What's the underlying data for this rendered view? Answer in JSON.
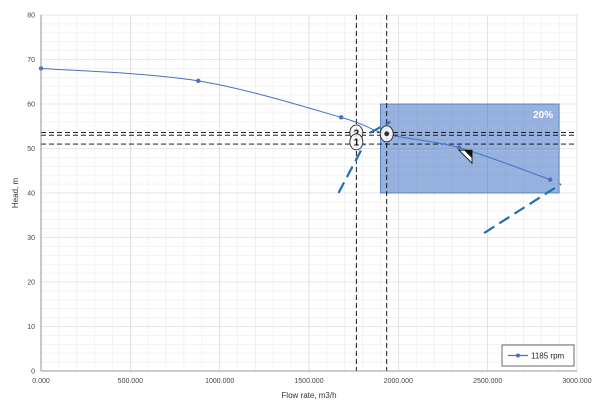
{
  "chart_data": {
    "type": "line",
    "xlabel": "Flow rate, m3/h",
    "ylabel": "Head, m",
    "xlim": [
      0,
      3000
    ],
    "ylim": [
      0,
      80
    ],
    "x_ticks": [
      0,
      500,
      1000,
      1500,
      2000,
      2500,
      3000
    ],
    "x_tick_labels": [
      "0.000",
      "500.000",
      "1000.000",
      "1500.000",
      "2000.000",
      "2500.000",
      "3000.000"
    ],
    "y_ticks": [
      0,
      10,
      20,
      30,
      40,
      50,
      60,
      70,
      80
    ],
    "y_tick_labels": [
      "0",
      "10",
      "20",
      "30",
      "40",
      "50",
      "60",
      "70",
      "80"
    ],
    "grid": true,
    "legend_position": "bottom-right",
    "series": [
      {
        "name": "1185 rpm",
        "color": "#4472c4",
        "x": [
          0,
          880,
          1680,
          1935,
          2340,
          2850
        ],
        "y": [
          68,
          65.2,
          57,
          53.2,
          50.2,
          43
        ]
      }
    ],
    "shaded_region": {
      "label": "20%",
      "x_range": [
        1900,
        2900
      ],
      "y_range": [
        40,
        60
      ],
      "color": "#4472c4"
    },
    "reference_lines": {
      "vertical_x": [
        1765,
        1935
      ],
      "horizontal_y": [
        51,
        53,
        53.6
      ]
    },
    "system_curve_segments": [
      {
        "x": [
          1665,
          1810
        ],
        "y": [
          40,
          51
        ]
      },
      {
        "x": [
          1840,
          1955
        ],
        "y": [
          53.5,
          56
        ]
      },
      {
        "x": [
          2480,
          2910
        ],
        "y": [
          31,
          42
        ]
      }
    ],
    "markers": [
      {
        "label": "2",
        "x": 1765,
        "y": 53.5
      },
      {
        "label": "1",
        "x": 1765,
        "y": 51.5
      },
      {
        "label": "",
        "x": 1935,
        "y": 53.3
      }
    ],
    "triangle_marker": {
      "x": 2390,
      "y": 48.5
    },
    "colors": {
      "series": "#4472c4",
      "region": "#4472c4",
      "system_curve": "#1f6fb8",
      "grid": "#d9d9d9",
      "reference": "#000000"
    }
  }
}
